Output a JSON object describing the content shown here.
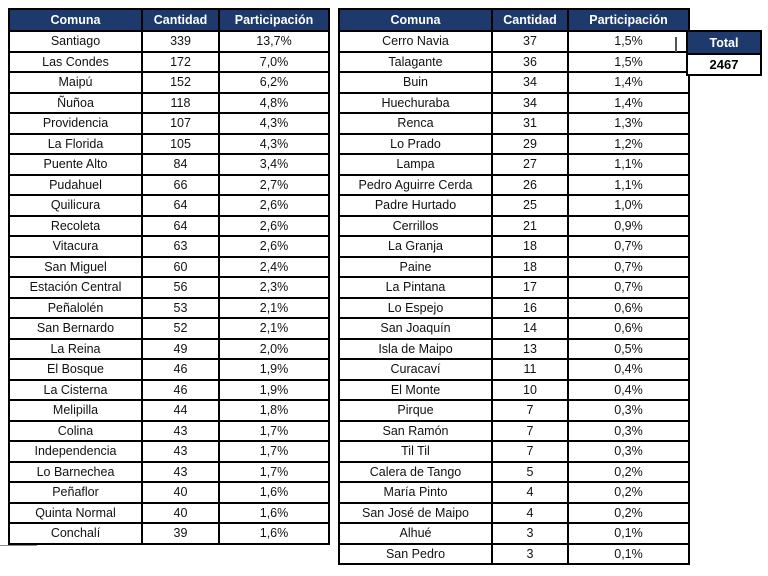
{
  "colors": {
    "header_bg": "#1e3a6d",
    "header_text": "#ffffff",
    "border": "#000000",
    "row_text": "#111111"
  },
  "total_box": {
    "label": "Total",
    "value": "2467"
  },
  "tables": [
    {
      "headers": [
        "Comuna",
        "Cantidad",
        "Participación"
      ],
      "rows": [
        [
          "Santiago",
          "339",
          "13,7%"
        ],
        [
          "Las Condes",
          "172",
          "7,0%"
        ],
        [
          "Maipú",
          "152",
          "6,2%"
        ],
        [
          "Ñuñoa",
          "118",
          "4,8%"
        ],
        [
          "Providencia",
          "107",
          "4,3%"
        ],
        [
          "La Florida",
          "105",
          "4,3%"
        ],
        [
          "Puente Alto",
          "84",
          "3,4%"
        ],
        [
          "Pudahuel",
          "66",
          "2,7%"
        ],
        [
          "Quilicura",
          "64",
          "2,6%"
        ],
        [
          "Recoleta",
          "64",
          "2,6%"
        ],
        [
          "Vitacura",
          "63",
          "2,6%"
        ],
        [
          "San Miguel",
          "60",
          "2,4%"
        ],
        [
          "Estación Central",
          "56",
          "2,3%"
        ],
        [
          "Peñalolén",
          "53",
          "2,1%"
        ],
        [
          "San Bernardo",
          "52",
          "2,1%"
        ],
        [
          "La Reina",
          "49",
          "2,0%"
        ],
        [
          "El Bosque",
          "46",
          "1,9%"
        ],
        [
          "La Cisterna",
          "46",
          "1,9%"
        ],
        [
          "Melipilla",
          "44",
          "1,8%"
        ],
        [
          "Colina",
          "43",
          "1,7%"
        ],
        [
          "Independencia",
          "43",
          "1,7%"
        ],
        [
          "Lo Barnechea",
          "43",
          "1,7%"
        ],
        [
          "Peñaflor",
          "40",
          "1,6%"
        ],
        [
          "Quinta Normal",
          "40",
          "1,6%"
        ],
        [
          "Conchalí",
          "39",
          "1,6%"
        ]
      ]
    },
    {
      "headers": [
        "Comuna",
        "Cantidad",
        "Participación"
      ],
      "rows": [
        [
          "Cerro Navia",
          "37",
          "1,5%"
        ],
        [
          "Talagante",
          "36",
          "1,5%"
        ],
        [
          "Buin",
          "34",
          "1,4%"
        ],
        [
          "Huechuraba",
          "34",
          "1,4%"
        ],
        [
          "Renca",
          "31",
          "1,3%"
        ],
        [
          "Lo Prado",
          "29",
          "1,2%"
        ],
        [
          "Lampa",
          "27",
          "1,1%"
        ],
        [
          "Pedro Aguirre Cerda",
          "26",
          "1,1%"
        ],
        [
          "Padre Hurtado",
          "25",
          "1,0%"
        ],
        [
          "Cerrillos",
          "21",
          "0,9%"
        ],
        [
          "La Granja",
          "18",
          "0,7%"
        ],
        [
          "Paine",
          "18",
          "0,7%"
        ],
        [
          "La Pintana",
          "17",
          "0,7%"
        ],
        [
          "Lo Espejo",
          "16",
          "0,6%"
        ],
        [
          "San Joaquín",
          "14",
          "0,6%"
        ],
        [
          "Isla de Maipo",
          "13",
          "0,5%"
        ],
        [
          "Curacaví",
          "11",
          "0,4%"
        ],
        [
          "El Monte",
          "10",
          "0,4%"
        ],
        [
          "Pirque",
          "7",
          "0,3%"
        ],
        [
          "San Ramón",
          "7",
          "0,3%"
        ],
        [
          "Til Til",
          "7",
          "0,3%"
        ],
        [
          "Calera de Tango",
          "5",
          "0,2%"
        ],
        [
          "María Pinto",
          "4",
          "0,2%"
        ],
        [
          "San José de Maipo",
          "4",
          "0,2%"
        ],
        [
          "Alhué",
          "3",
          "0,1%"
        ],
        [
          "San Pedro",
          "3",
          "0,1%"
        ]
      ]
    }
  ]
}
